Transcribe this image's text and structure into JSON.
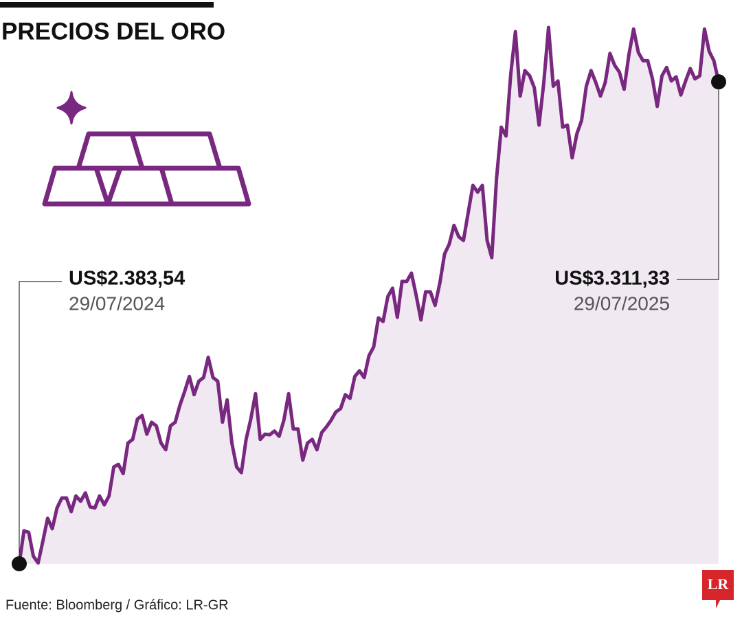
{
  "chart_data": {
    "type": "line",
    "title": "PRECIOS DEL ORO",
    "source": "Fuente: Bloomberg / Gráfico: LR-GR",
    "logo": "LR",
    "color": "#78287f",
    "area": true,
    "categories": [
      "29/07/2024",
      null,
      null,
      null,
      null,
      null,
      null,
      null,
      null,
      null,
      null,
      null,
      null,
      null,
      null,
      null,
      null,
      null,
      null,
      null,
      null,
      null,
      null,
      null,
      null,
      null,
      null,
      null,
      null,
      null,
      null,
      null,
      null,
      null,
      null,
      null,
      null,
      null,
      null,
      null,
      null,
      null,
      null,
      null,
      null,
      null,
      null,
      null,
      null,
      null,
      null,
      null,
      null,
      null,
      null,
      null,
      null,
      null,
      null,
      null,
      null,
      null,
      null,
      null,
      null,
      null,
      null,
      null,
      null,
      null,
      null,
      null,
      null,
      null,
      null,
      null,
      null,
      null,
      null,
      null,
      null,
      null,
      null,
      null,
      null,
      null,
      null,
      null,
      null,
      null,
      null,
      null,
      null,
      null,
      null,
      null,
      null,
      null,
      null,
      null,
      null,
      null,
      null,
      null,
      null,
      null,
      null,
      null,
      null,
      null,
      null,
      null,
      null,
      null,
      null,
      null,
      null,
      null,
      null,
      null,
      null,
      null,
      null,
      null,
      null,
      null,
      null,
      null,
      null,
      null,
      null,
      null,
      null,
      null,
      null,
      null,
      null,
      null,
      null,
      null,
      null,
      null,
      null,
      null,
      null,
      null,
      null,
      null,
      "29/07/2025"
    ],
    "values": [
      2383.54,
      2447,
      2444,
      2398,
      2385,
      2427,
      2471,
      2451,
      2491,
      2510,
      2510,
      2484,
      2514,
      2504,
      2520,
      2493,
      2491,
      2514,
      2497,
      2514,
      2570,
      2575,
      2557,
      2616,
      2623,
      2662,
      2669,
      2633,
      2656,
      2649,
      2616,
      2603,
      2649,
      2656,
      2689,
      2715,
      2744,
      2709,
      2735,
      2742,
      2781,
      2742,
      2735,
      2656,
      2699,
      2616,
      2570,
      2559,
      2623,
      2662,
      2711,
      2623,
      2633,
      2632,
      2639,
      2629,
      2660,
      2711,
      2643,
      2643,
      2583,
      2616,
      2623,
      2603,
      2636,
      2647,
      2660,
      2676,
      2682,
      2709,
      2702,
      2744,
      2755,
      2742,
      2784,
      2801,
      2857,
      2850,
      2898,
      2914,
      2858,
      2927,
      2927,
      2943,
      2900,
      2853,
      2907,
      2907,
      2881,
      2924,
      2980,
      2999,
      3035,
      3013,
      3006,
      3059,
      3112,
      3099,
      3112,
      3006,
      2973,
      3125,
      3224,
      3207,
      3326,
      3408,
      3284,
      3333,
      3323,
      3300,
      3228,
      3310,
      3416,
      3303,
      3313,
      3224,
      3228,
      3165,
      3211,
      3237,
      3303,
      3333,
      3310,
      3284,
      3310,
      3366,
      3343,
      3330,
      3297,
      3363,
      3413,
      3368,
      3352,
      3352,
      3317,
      3264,
      3323,
      3339,
      3313,
      3321,
      3286,
      3313,
      3337,
      3317,
      3323,
      3413,
      3370,
      3352,
      3311.33
    ],
    "value_labels": [
      "US$2.383,54",
      null,
      null,
      null,
      null,
      null,
      null,
      null,
      null,
      null,
      null,
      null,
      null,
      null,
      null,
      null,
      null,
      null,
      null,
      null,
      null,
      null,
      null,
      null,
      null,
      null,
      null,
      null,
      null,
      null,
      null,
      null,
      null,
      null,
      null,
      null,
      null,
      null,
      null,
      null,
      null,
      null,
      null,
      null,
      null,
      null,
      null,
      null,
      null,
      null,
      null,
      null,
      null,
      null,
      null,
      null,
      null,
      null,
      null,
      null,
      null,
      null,
      null,
      null,
      null,
      null,
      null,
      null,
      null,
      null,
      null,
      null,
      null,
      null,
      null,
      null,
      null,
      null,
      null,
      null,
      null,
      null,
      null,
      null,
      null,
      null,
      null,
      null,
      null,
      null,
      null,
      null,
      null,
      null,
      null,
      null,
      null,
      null,
      null,
      null,
      null,
      null,
      null,
      null,
      null,
      null,
      null,
      null,
      null,
      null,
      null,
      null,
      null,
      null,
      null,
      null,
      null,
      null,
      null,
      null,
      null,
      null,
      null,
      null,
      null,
      null,
      null,
      null,
      null,
      null,
      null,
      null,
      null,
      null,
      null,
      null,
      null,
      null,
      null,
      null,
      null,
      null,
      null,
      null,
      null,
      null,
      null,
      null,
      "US$3.311,33"
    ]
  }
}
